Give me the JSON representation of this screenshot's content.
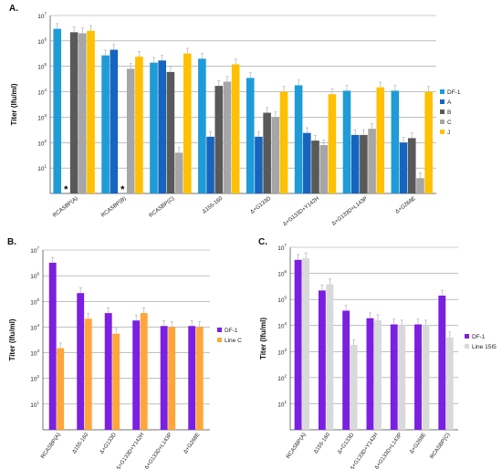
{
  "chart_data": [
    {
      "type": "bar",
      "panel": "A.",
      "ylabel": "Titer (Ifu/ml)",
      "yscale": "log",
      "ylim": [
        1,
        10000000
      ],
      "grid": true,
      "legend_position": "right",
      "categories": [
        "RCASBP(A)",
        "RCASBP(B)",
        "RCASBP(C)",
        "Δ155-160",
        "Δ+G133D",
        "Δ+G133D+Y142H",
        "Δ+G133D+L143P",
        "Δ+G268E"
      ],
      "asterisk_categories": [
        0,
        1
      ],
      "asterisk": "*",
      "series": [
        {
          "name": "DF-1",
          "color": "#1f9bd7",
          "values": [
            3000000,
            270000,
            140000,
            200000,
            35000,
            18000,
            11000,
            11000
          ]
        },
        {
          "name": "A",
          "color": "#1565c0",
          "values": [
            null,
            450000,
            170000,
            170,
            170,
            240,
            200,
            100
          ]
        },
        {
          "name": "B",
          "color": "#595959",
          "values": [
            2200000,
            null,
            60000,
            17000,
            1500,
            120,
            200,
            150
          ]
        },
        {
          "name": "C",
          "color": "#a6a6a6",
          "values": [
            2000000,
            80000,
            40,
            25000,
            1000,
            80,
            350,
            4
          ]
        },
        {
          "name": "J",
          "color": "#ffc000",
          "values": [
            2500000,
            240000,
            320000,
            120000,
            10000,
            8000,
            15000,
            10000
          ]
        }
      ]
    },
    {
      "type": "bar",
      "panel": "B.",
      "ylabel": "Titer (Ifu/ml)",
      "yscale": "log",
      "ylim": [
        1,
        10000000
      ],
      "grid": true,
      "legend_position": "right",
      "categories": [
        "RCASBP(A)",
        "Δ155-160",
        "Δ+G133D",
        "Δ+G133D+Y142H",
        "Δ+G133D+L143P",
        "Δ+G268E"
      ],
      "series": [
        {
          "name": "DF-1",
          "color": "#7b1fe0",
          "values": [
            3200000,
            210000,
            35000,
            18000,
            11000,
            11000
          ]
        },
        {
          "name": "Line C",
          "color": "#ffa53a",
          "values": [
            1500,
            21000,
            5500,
            35000,
            10000,
            10000
          ]
        }
      ]
    },
    {
      "type": "bar",
      "panel": "C.",
      "ylabel": "Titer (Ifu/ml)",
      "yscale": "log",
      "ylim": [
        1,
        10000000
      ],
      "grid": true,
      "legend_position": "right",
      "categories": [
        "RCASBP(A)",
        "Δ155-160",
        "Δ+G133D",
        "Δ+G133D+Y142H",
        "Δ+G133D+L143P",
        "Δ+G268E",
        "RCASBP(C)"
      ],
      "series": [
        {
          "name": "DF-1",
          "color": "#7b1fe0",
          "values": [
            3300000,
            220000,
            37000,
            19000,
            11000,
            11000,
            140000
          ]
        },
        {
          "name": "Line 15I5",
          "color": "#d9d9d9",
          "values": [
            3800000,
            380000,
            1800,
            16000,
            10000,
            10000,
            3500
          ]
        }
      ]
    }
  ]
}
